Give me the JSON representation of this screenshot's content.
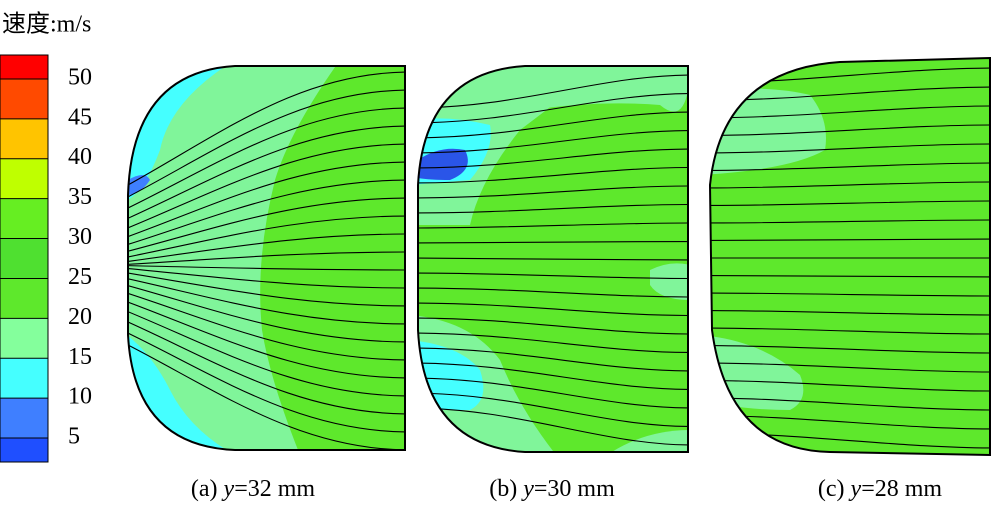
{
  "chart_data": {
    "type": "contour",
    "title": "速度:m/s",
    "colorbar": {
      "ticks": [
        5,
        10,
        15,
        20,
        25,
        30,
        35,
        40,
        45,
        50
      ],
      "ylim": [
        2,
        53
      ],
      "colors": [
        "#1f4fff",
        "#3f7fff",
        "#45ffff",
        "#84ff9c",
        "#5ee82c",
        "#4fe030",
        "#66ee22",
        "#bfff00",
        "#ffc400",
        "#ff4a00",
        "#ff0000"
      ]
    },
    "panels": [
      {
        "prefix": "(a)",
        "variable": "y",
        "rest": "=32 mm"
      },
      {
        "prefix": "(b)",
        "variable": "y",
        "rest": "=30 mm"
      },
      {
        "prefix": "(c)",
        "variable": "y",
        "rest": "=28 mm"
      }
    ]
  }
}
